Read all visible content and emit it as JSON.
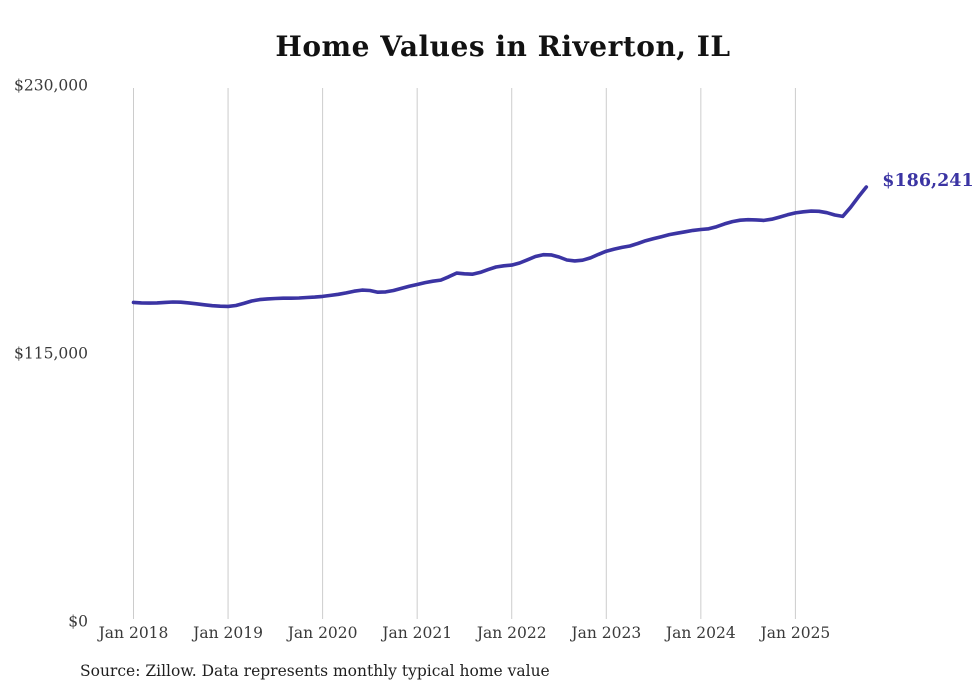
{
  "page": {
    "title": "Home Values in Riverton, IL",
    "source_note": "Source: Zillow. Data represents monthly typical home value"
  },
  "chart_data": {
    "type": "line",
    "title": "Home Values in Riverton, IL",
    "source": "Source: Zillow. Data represents monthly typical home value",
    "series_name": "Typical home value (monthly)",
    "legend_position": "none",
    "grid": "vertical-only",
    "ylim": [
      0,
      230000
    ],
    "y_ticks": [
      {
        "value": 0,
        "label": "$0"
      },
      {
        "value": 115000,
        "label": "$115,000"
      },
      {
        "value": 230000,
        "label": "$230,000"
      }
    ],
    "x_tick_labels": [
      "Jan 2018",
      "Jan 2019",
      "Jan 2020",
      "Jan 2021",
      "Jan 2022",
      "Jan 2023",
      "Jan 2024",
      "Jan 2025"
    ],
    "months_per_tick": 12,
    "end_label": "$186,241",
    "last_value": 186241,
    "line_color": "#3b34a3",
    "end_label_color": "#3b34a3",
    "grid_color": "#cccccc",
    "x": [
      "2018-01",
      "2018-02",
      "2018-03",
      "2018-04",
      "2018-05",
      "2018-06",
      "2018-07",
      "2018-08",
      "2018-09",
      "2018-10",
      "2018-11",
      "2018-12",
      "2019-01",
      "2019-02",
      "2019-03",
      "2019-04",
      "2019-05",
      "2019-06",
      "2019-07",
      "2019-08",
      "2019-09",
      "2019-10",
      "2019-11",
      "2019-12",
      "2020-01",
      "2020-02",
      "2020-03",
      "2020-04",
      "2020-05",
      "2020-06",
      "2020-07",
      "2020-08",
      "2020-09",
      "2020-10",
      "2020-11",
      "2020-12",
      "2021-01",
      "2021-02",
      "2021-03",
      "2021-04",
      "2021-05",
      "2021-06",
      "2021-07",
      "2021-08",
      "2021-09",
      "2021-10",
      "2021-11",
      "2021-12",
      "2022-01",
      "2022-02",
      "2022-03",
      "2022-04",
      "2022-05",
      "2022-06",
      "2022-07",
      "2022-08",
      "2022-09",
      "2022-10",
      "2022-11",
      "2022-12",
      "2023-01",
      "2023-02",
      "2023-03",
      "2023-04",
      "2023-05",
      "2023-06",
      "2023-07",
      "2023-08",
      "2023-09",
      "2023-10",
      "2023-11",
      "2023-12",
      "2024-01",
      "2024-02",
      "2024-03",
      "2024-04",
      "2024-05",
      "2024-06",
      "2024-07",
      "2024-08",
      "2024-09",
      "2024-10",
      "2024-11",
      "2024-12",
      "2025-01",
      "2025-02",
      "2025-03",
      "2025-04",
      "2025-05",
      "2025-06",
      "2025-07",
      "2025-08",
      "2025-09",
      "2025-10"
    ],
    "values": [
      136700,
      136500,
      136400,
      136500,
      136700,
      136900,
      136800,
      136500,
      136100,
      135700,
      135300,
      135100,
      135000,
      135400,
      136300,
      137300,
      137900,
      138200,
      138400,
      138500,
      138500,
      138600,
      138800,
      139000,
      139300,
      139700,
      140200,
      140800,
      141500,
      142000,
      141800,
      141100,
      141200,
      141800,
      142700,
      143600,
      144400,
      145200,
      145800,
      146300,
      147700,
      149300,
      149000,
      148800,
      149600,
      150800,
      151900,
      152400,
      152700,
      153600,
      155000,
      156400,
      157200,
      157100,
      156200,
      154900,
      154500,
      154800,
      155800,
      157300,
      158700,
      159600,
      160300,
      160900,
      162000,
      163200,
      164100,
      164900,
      165800,
      166400,
      167000,
      167600,
      168000,
      168300,
      169200,
      170400,
      171400,
      172000,
      172200,
      172100,
      171900,
      172400,
      173300,
      174300,
      175100,
      175600,
      175900,
      175800,
      175200,
      174200,
      173600,
      177500,
      182000,
      186241
    ]
  }
}
